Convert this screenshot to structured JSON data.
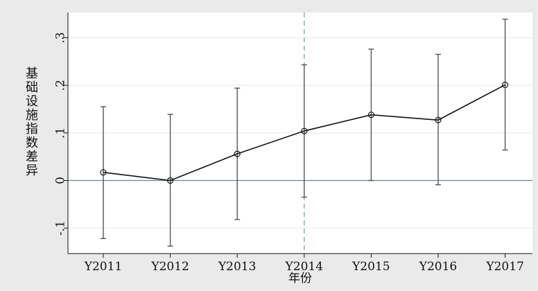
{
  "chart_data": {
    "type": "line",
    "title": "",
    "xlabel": "年份",
    "ylabel": "基础设施指数差异",
    "categories": [
      "Y2011",
      "Y2012",
      "Y2013",
      "Y2014",
      "Y2015",
      "Y2016",
      "Y2017"
    ],
    "series": [
      {
        "values": [
          0.017,
          0.0,
          0.056,
          0.104,
          0.138,
          0.127,
          0.201
        ],
        "ci_low": [
          -0.122,
          -0.138,
          -0.082,
          -0.035,
          0.0,
          -0.009,
          0.064
        ],
        "ci_high": [
          0.155,
          0.139,
          0.194,
          0.243,
          0.276,
          0.265,
          0.339
        ]
      }
    ],
    "yticks": [
      -0.1,
      0,
      0.1,
      0.2,
      0.3
    ],
    "ytick_labels": [
      "-.1",
      "0",
      ".1",
      ".2",
      ".3"
    ],
    "ylim": [
      -0.15,
      0.35
    ],
    "reference_line": {
      "y": 0,
      "color": "#5c8a8a"
    },
    "vertical_reference": {
      "category": "Y2014",
      "style": "dashed",
      "color": "#6a9a9a"
    },
    "grid": true,
    "colors": {
      "background": "#eaeaea",
      "plot_bg": "#ffffff",
      "line": "#111111",
      "errorbar": "#555555"
    }
  }
}
